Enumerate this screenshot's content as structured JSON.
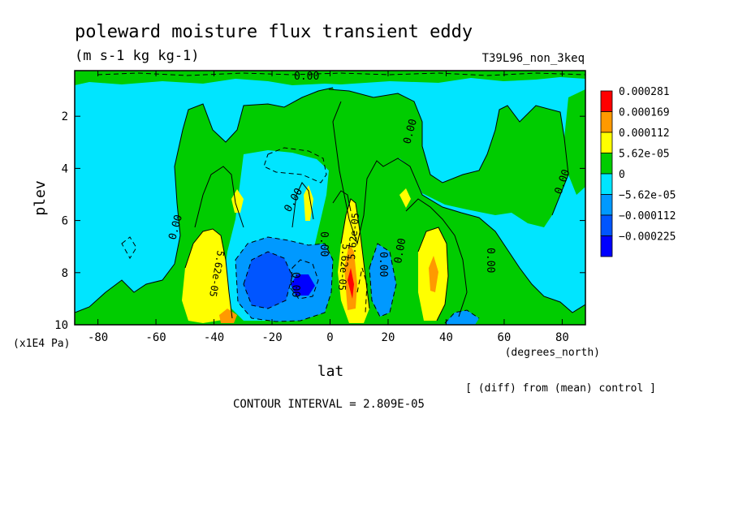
{
  "chart_data": {
    "type": "heatmap",
    "title": "poleward moisture flux transient eddy",
    "units": "(m s-1 kg kg-1)",
    "run_label": "T39L96_non_3keq",
    "xlabel": "lat",
    "x_units": "(degrees_north)",
    "ylabel": "plev",
    "y_units": "(x1E4 Pa)",
    "x_ticks": [
      "-80",
      "-60",
      "-40",
      "-20",
      "0",
      "20",
      "40",
      "60",
      "80"
    ],
    "x_tick_values": [
      -80,
      -60,
      -40,
      -20,
      0,
      20,
      40,
      60,
      80
    ],
    "y_ticks": [
      "2",
      "4",
      "6",
      "8",
      "10"
    ],
    "y_tick_values": [
      2,
      4,
      6,
      8,
      10
    ],
    "xlim": [
      -88,
      88
    ],
    "ylim": [
      10,
      0.25
    ],
    "contour_interval_text": "CONTOUR INTERVAL = 2.809E-05",
    "note": "[ (diff) from (mean) control ]",
    "legend": {
      "placement": "right",
      "entries": [
        {
          "label": "0.000281",
          "color": "#ff0000"
        },
        {
          "label": "0.000169",
          "color": "#ff9900"
        },
        {
          "label": "0.000112",
          "color": "#ffff00"
        },
        {
          "label": "5.62e-05",
          "color": "#00cc00"
        },
        {
          "label": "0",
          "color": "#00e5ff"
        },
        {
          "label": "−5.62e-05",
          "color": "#0099ff"
        },
        {
          "label": "−0.000112",
          "color": "#0055ff"
        },
        {
          "label": "−0.000225",
          "color": "#0000ff"
        }
      ]
    },
    "contour_labels": [
      "0.00",
      "0.00",
      "0.00",
      "0.00",
      "0.00",
      "0.00",
      "0.00",
      "0.00",
      "0.00",
      "0.00",
      "5.62e-05",
      "5.62e-05",
      "5.62e-05"
    ],
    "features": [
      {
        "lat": -70,
        "plev": 5,
        "value": -3e-05
      },
      {
        "lat": -55,
        "plev": 6.5,
        "value": 2e-05
      },
      {
        "lat": -40,
        "plev": 8.5,
        "value": 9e-05
      },
      {
        "lat": -25,
        "plev": 8.0,
        "value": -9e-05
      },
      {
        "lat": -10,
        "plev": 8.7,
        "value": -0.00016
      },
      {
        "lat": 5,
        "plev": 7.5,
        "value": 0.00017
      },
      {
        "lat": 30,
        "plev": 7.8,
        "value": 9e-05
      },
      {
        "lat": 45,
        "plev": 9.7,
        "value": -6e-05
      },
      {
        "lat": 75,
        "plev": 6,
        "value": -2e-05
      }
    ]
  }
}
